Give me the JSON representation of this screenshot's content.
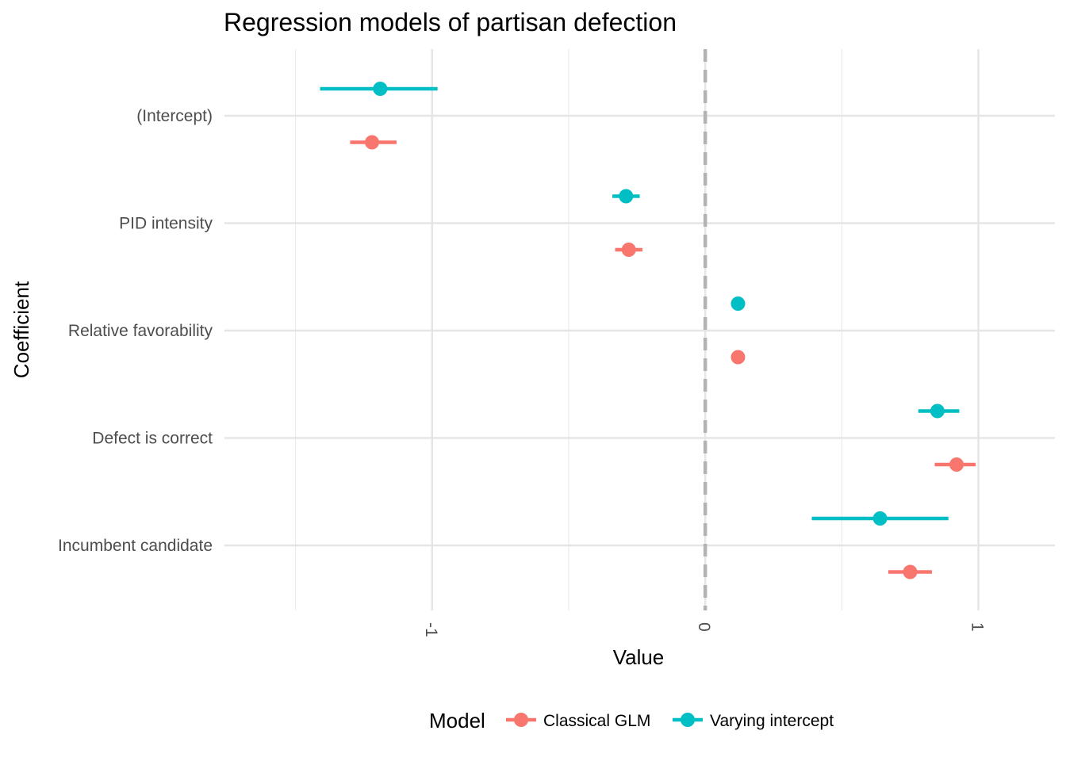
{
  "chart_data": {
    "type": "dot-whisker",
    "title": "Regression models of partisan defection",
    "xlabel": "Value",
    "ylabel": "Coefficient",
    "xlim": [
      -1.76,
      1.28
    ],
    "x_ticks": [
      -1,
      0,
      1
    ],
    "x_tick_labels": [
      "-1",
      "0",
      "1"
    ],
    "x_minor_gridlines": [
      -1.5,
      -0.5,
      0.5
    ],
    "reference_line": 0,
    "grid": true,
    "categories": [
      "(Intercept)",
      "PID intensity",
      "Relative favorability",
      "Defect is correct",
      "Incumbent candidate"
    ],
    "legend": {
      "title": "Model",
      "placement": "bottom"
    },
    "series": [
      {
        "name": "Classical GLM",
        "color": "#F8766D",
        "points": [
          {
            "category": "(Intercept)",
            "estimate": -1.22,
            "low": -1.3,
            "high": -1.13
          },
          {
            "category": "PID intensity",
            "estimate": -0.28,
            "low": -0.33,
            "high": -0.23
          },
          {
            "category": "Relative favorability",
            "estimate": 0.12,
            "low": 0.12,
            "high": 0.12
          },
          {
            "category": "Defect is correct",
            "estimate": 0.92,
            "low": 0.84,
            "high": 0.99
          },
          {
            "category": "Incumbent candidate",
            "estimate": 0.75,
            "low": 0.67,
            "high": 0.83
          }
        ]
      },
      {
        "name": "Varying intercept",
        "color": "#00BFC4",
        "points": [
          {
            "category": "(Intercept)",
            "estimate": -1.19,
            "low": -1.41,
            "high": -0.98
          },
          {
            "category": "PID intensity",
            "estimate": -0.29,
            "low": -0.34,
            "high": -0.24
          },
          {
            "category": "Relative favorability",
            "estimate": 0.12,
            "low": 0.12,
            "high": 0.12
          },
          {
            "category": "Defect is correct",
            "estimate": 0.85,
            "low": 0.78,
            "high": 0.93
          },
          {
            "category": "Incumbent candidate",
            "estimate": 0.64,
            "low": 0.39,
            "high": 0.89
          }
        ]
      }
    ]
  }
}
